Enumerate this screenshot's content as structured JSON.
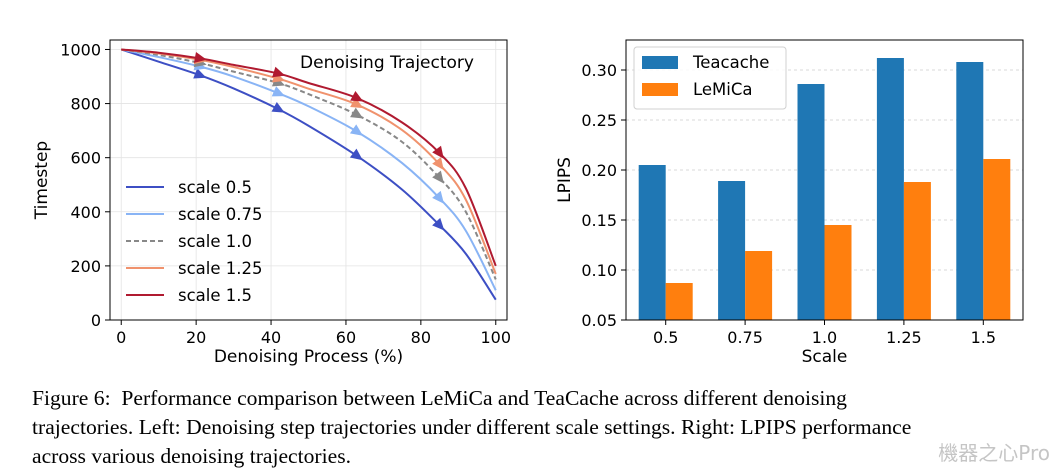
{
  "chart_data": [
    {
      "type": "line",
      "title": "Denoising Trajectory",
      "xlabel": "Denoising Process (%)",
      "ylabel": "Timestep",
      "xlim": [
        -3,
        103
      ],
      "ylim": [
        0,
        1035
      ],
      "xticks": [
        0,
        20,
        40,
        60,
        80,
        100
      ],
      "yticks": [
        0,
        200,
        400,
        600,
        800,
        1000
      ],
      "grid": true,
      "legend_position": "lower-left",
      "series": [
        {
          "name": "scale 0.5",
          "color": "#3d4fc4",
          "dashed": false,
          "x": [
            0,
            10,
            21,
            30,
            42,
            50,
            63,
            75,
            85,
            92,
            100
          ],
          "y": [
            1000,
            955,
            905,
            856,
            779,
            718,
            606,
            482,
            350,
            245,
            75
          ],
          "arrows_at": [
            21,
            42,
            63,
            85
          ]
        },
        {
          "name": "scale 0.75",
          "color": "#89b4f5",
          "dashed": false,
          "x": [
            0,
            10,
            21,
            30,
            42,
            50,
            63,
            75,
            85,
            92,
            100
          ],
          "y": [
            1000,
            972,
            937,
            900,
            838,
            790,
            696,
            580,
            450,
            330,
            110
          ],
          "arrows_at": [
            21,
            42,
            63,
            85
          ]
        },
        {
          "name": "scale 1.0",
          "color": "#888888",
          "dashed": true,
          "x": [
            0,
            10,
            21,
            30,
            42,
            50,
            63,
            75,
            85,
            92,
            100
          ],
          "y": [
            1000,
            980,
            950,
            918,
            876,
            835,
            758,
            658,
            525,
            400,
            150
          ],
          "arrows_at": [
            21,
            42,
            63,
            85
          ]
        },
        {
          "name": "scale 1.25",
          "color": "#f0926d",
          "dashed": false,
          "x": [
            0,
            10,
            21,
            30,
            42,
            50,
            63,
            75,
            85,
            92,
            100
          ],
          "y": [
            1000,
            985,
            962,
            935,
            892,
            855,
            796,
            702,
            575,
            445,
            170
          ],
          "arrows_at": [
            21,
            42,
            63,
            85
          ]
        },
        {
          "name": "scale 1.5",
          "color": "#b01a30",
          "dashed": false,
          "x": [
            0,
            10,
            21,
            30,
            42,
            50,
            63,
            75,
            85,
            92,
            100
          ],
          "y": [
            1000,
            988,
            967,
            943,
            911,
            876,
            820,
            730,
            617,
            487,
            200
          ],
          "arrows_at": [
            21,
            42,
            63,
            85
          ]
        }
      ]
    },
    {
      "type": "bar",
      "title": "",
      "xlabel": "Scale",
      "ylabel": "LPIPS",
      "categories": [
        "0.5",
        "0.75",
        "1.0",
        "1.25",
        "1.5"
      ],
      "ylim": [
        0.05,
        0.33
      ],
      "yticks": [
        "0.05",
        "0.10",
        "0.15",
        "0.20",
        "0.25",
        "0.30"
      ],
      "grid": true,
      "legend_position": "upper-left",
      "series": [
        {
          "name": "Teacache",
          "color": "#1f77b4",
          "values": [
            0.205,
            0.189,
            0.286,
            0.312,
            0.308
          ]
        },
        {
          "name": "LeMiCa",
          "color": "#ff7f0e",
          "values": [
            0.087,
            0.119,
            0.145,
            0.188,
            0.211
          ]
        }
      ]
    }
  ],
  "caption": {
    "lines": [
      "Figure 6:  Performance comparison between LeMiCa and TeaCache across different denoising",
      "trajectories. Left: Denoising step trajectories under different scale settings. Right: LPIPS performance",
      "across various denoising trajectories."
    ]
  },
  "watermark": "機器之心Pro"
}
